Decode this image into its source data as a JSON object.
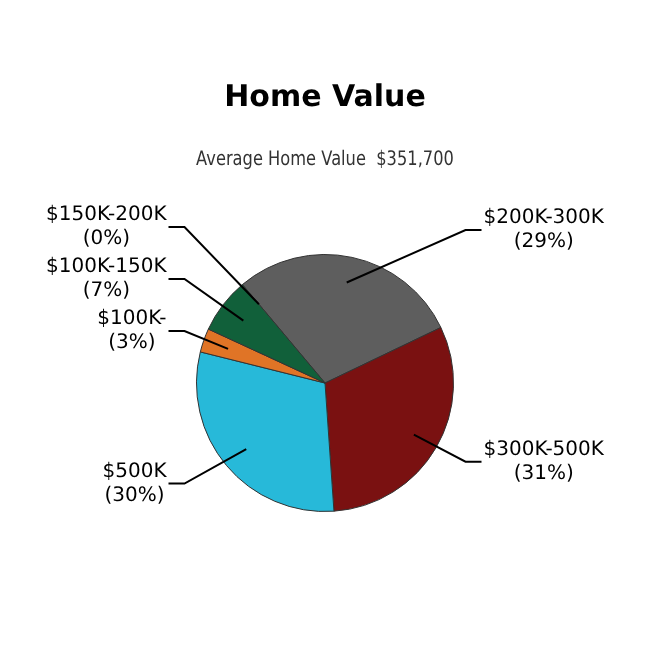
{
  "chart_data": {
    "type": "pie",
    "title": "Home Value",
    "subtitle": "Average Home Value  $351,700",
    "categories": [
      "$200K-300K",
      "$300K-500K",
      "$500K",
      "$100K-",
      "$100K-150K",
      "$150K-200K"
    ],
    "values": [
      29,
      31,
      30,
      3,
      7,
      0
    ],
    "value_labels": [
      "(29%)",
      "(31%)",
      "(30%)",
      "(3%)",
      "(7%)",
      "(0%)"
    ],
    "colors": [
      "#5e5e5e",
      "#7a1111",
      "#27b9d9",
      "#e07426",
      "#11603a",
      "#8c8c2a"
    ],
    "legend": false
  }
}
